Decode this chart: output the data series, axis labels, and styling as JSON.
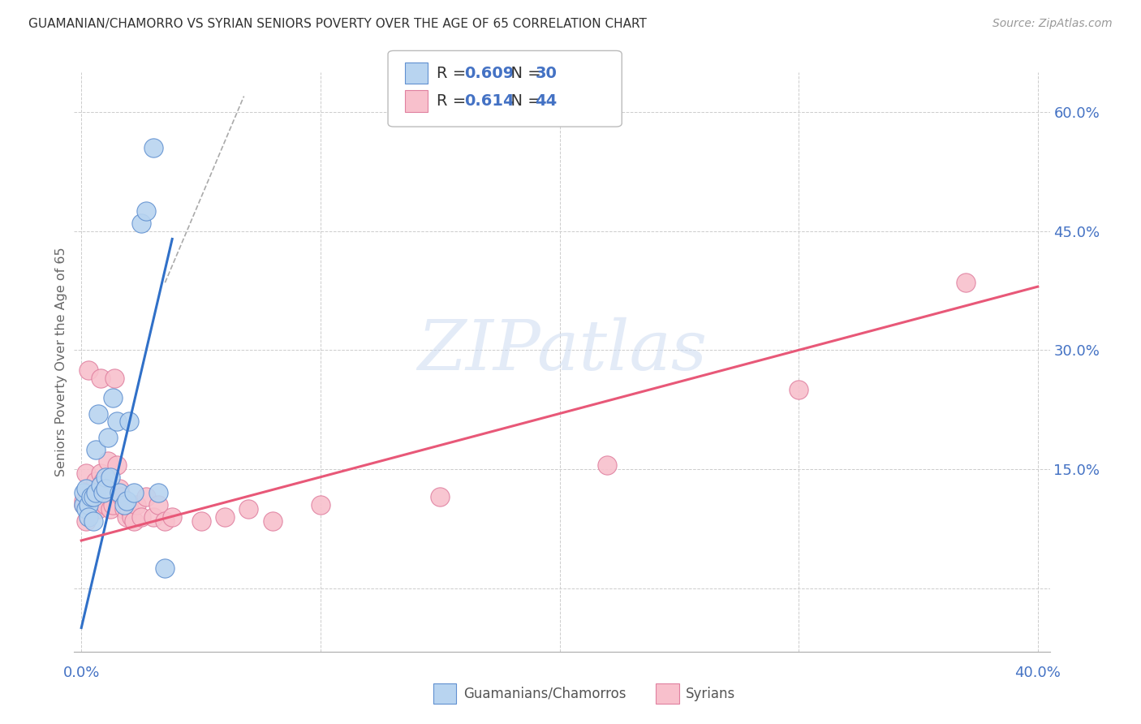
{
  "title": "GUAMANIAN/CHAMORRO VS SYRIAN SENIORS POVERTY OVER THE AGE OF 65 CORRELATION CHART",
  "source": "Source: ZipAtlas.com",
  "ylabel": "Seniors Poverty Over the Age of 65",
  "blue_R": "0.609",
  "blue_N": "30",
  "pink_R": "0.614",
  "pink_N": "44",
  "blue_label": "Guamanians/Chamorros",
  "pink_label": "Syrians",
  "blue_fill": "#B8D4F0",
  "pink_fill": "#F8C0CC",
  "blue_edge": "#6090D0",
  "pink_edge": "#E080A0",
  "blue_line": "#3070C8",
  "pink_line": "#E85878",
  "legend_text_color": "#4472C4",
  "axis_tick_color": "#4472C4",
  "grid_color": "#CCCCCC",
  "watermark_color": "#C8D8F0",
  "blue_scatter_x": [
    0.001,
    0.001,
    0.002,
    0.002,
    0.003,
    0.003,
    0.004,
    0.005,
    0.005,
    0.006,
    0.006,
    0.007,
    0.008,
    0.009,
    0.01,
    0.01,
    0.011,
    0.012,
    0.013,
    0.015,
    0.016,
    0.018,
    0.019,
    0.02,
    0.022,
    0.025,
    0.027,
    0.03,
    0.032,
    0.035
  ],
  "blue_scatter_y": [
    0.105,
    0.12,
    0.1,
    0.125,
    0.105,
    0.09,
    0.115,
    0.115,
    0.085,
    0.12,
    0.175,
    0.22,
    0.13,
    0.12,
    0.14,
    0.125,
    0.19,
    0.14,
    0.24,
    0.21,
    0.12,
    0.105,
    0.11,
    0.21,
    0.12,
    0.46,
    0.475,
    0.555,
    0.12,
    0.025
  ],
  "pink_scatter_x": [
    0.001,
    0.001,
    0.002,
    0.002,
    0.003,
    0.003,
    0.004,
    0.004,
    0.005,
    0.005,
    0.006,
    0.007,
    0.008,
    0.008,
    0.009,
    0.01,
    0.011,
    0.012,
    0.013,
    0.014,
    0.015,
    0.016,
    0.017,
    0.018,
    0.019,
    0.02,
    0.021,
    0.022,
    0.023,
    0.025,
    0.027,
    0.03,
    0.032,
    0.035,
    0.038,
    0.05,
    0.06,
    0.07,
    0.08,
    0.1,
    0.15,
    0.22,
    0.3,
    0.37
  ],
  "pink_scatter_y": [
    0.105,
    0.11,
    0.085,
    0.145,
    0.275,
    0.12,
    0.105,
    0.12,
    0.115,
    0.12,
    0.135,
    0.1,
    0.145,
    0.265,
    0.135,
    0.105,
    0.16,
    0.1,
    0.105,
    0.265,
    0.155,
    0.125,
    0.115,
    0.1,
    0.09,
    0.1,
    0.09,
    0.085,
    0.105,
    0.09,
    0.115,
    0.09,
    0.105,
    0.085,
    0.09,
    0.085,
    0.09,
    0.1,
    0.085,
    0.105,
    0.115,
    0.155,
    0.25,
    0.385
  ],
  "blue_line_x": [
    0.0,
    0.038
  ],
  "blue_line_y": [
    -0.05,
    0.44
  ],
  "pink_line_x": [
    0.0,
    0.4
  ],
  "pink_line_y": [
    0.06,
    0.38
  ],
  "diag_line_x": [
    0.035,
    0.068
  ],
  "diag_line_y": [
    0.385,
    0.62
  ],
  "xlim": [
    -0.003,
    0.405
  ],
  "ylim": [
    -0.08,
    0.65
  ],
  "yticks": [
    0.0,
    0.15,
    0.3,
    0.45,
    0.6
  ],
  "ytick_labels": [
    "",
    "15.0%",
    "30.0%",
    "45.0%",
    "60.0%"
  ],
  "xticks": [
    0.0,
    0.1,
    0.2,
    0.3,
    0.4
  ],
  "xtick_labels_show": [
    "0.0%",
    "40.0%"
  ]
}
